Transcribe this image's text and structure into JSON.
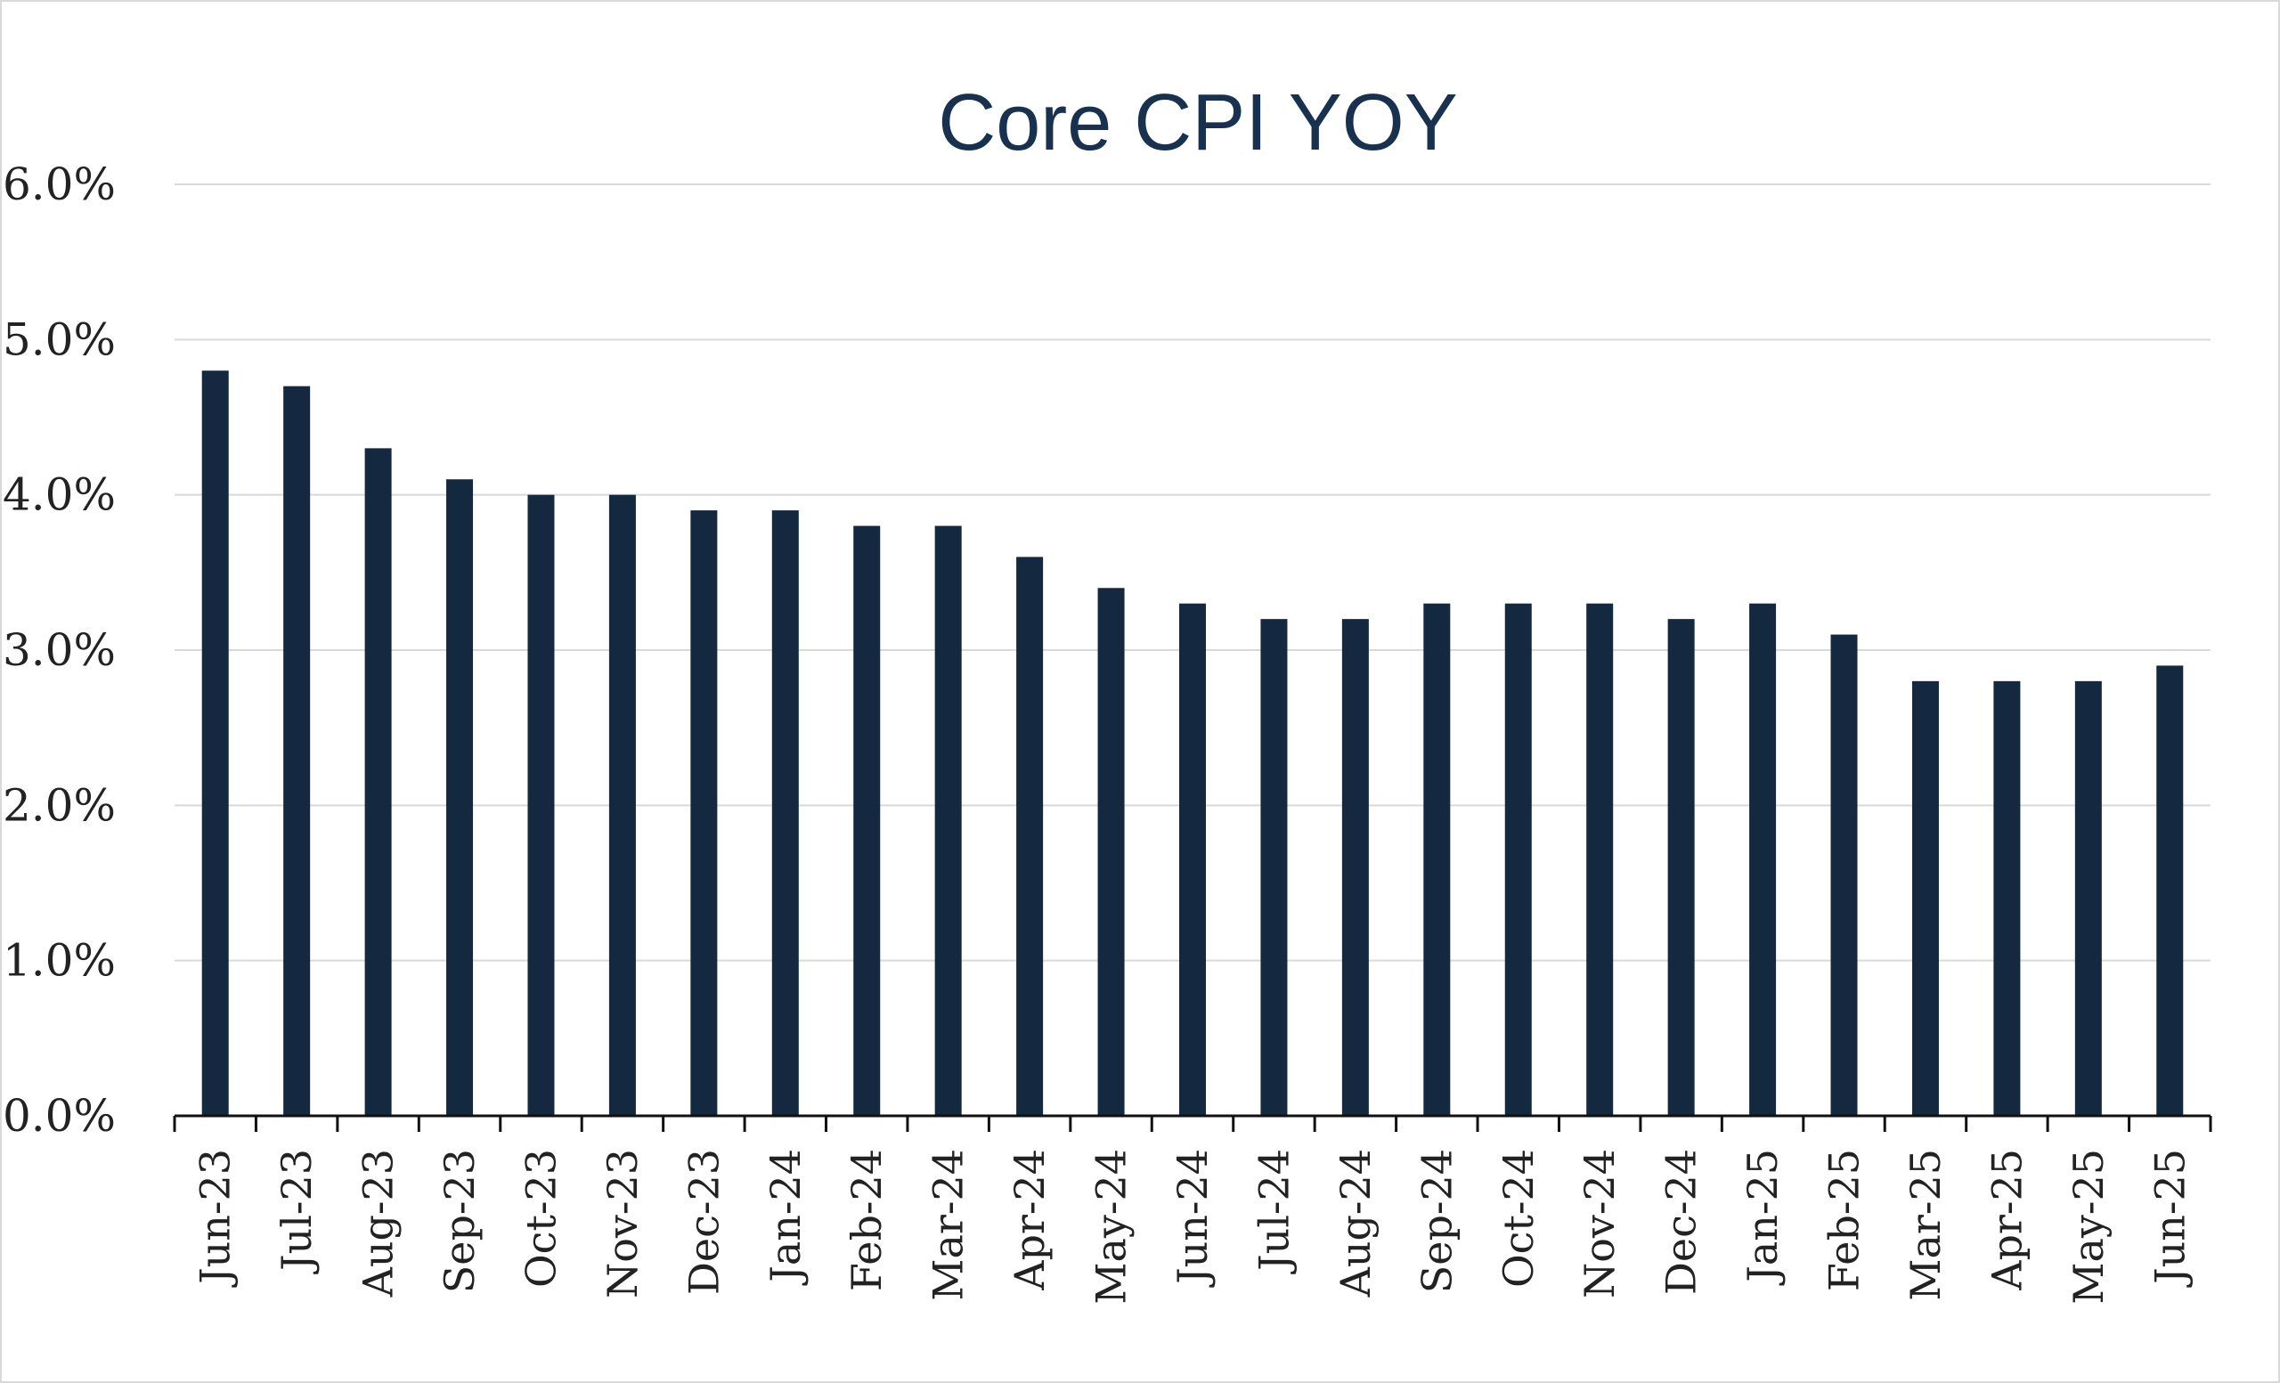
{
  "chart_data": {
    "type": "bar",
    "title": "Core CPI YOY",
    "xlabel": "",
    "ylabel": "",
    "ylim": [
      0,
      6
    ],
    "yticks": [
      "0.0%",
      "1.0%",
      "2.0%",
      "3.0%",
      "4.0%",
      "5.0%",
      "6.0%"
    ],
    "grid": true,
    "bar_color": "#14283f",
    "categories": [
      "Jun-23",
      "Jul-23",
      "Aug-23",
      "Sep-23",
      "Oct-23",
      "Nov-23",
      "Dec-23",
      "Jan-24",
      "Feb-24",
      "Mar-24",
      "Apr-24",
      "May-24",
      "Jun-24",
      "Jul-24",
      "Aug-24",
      "Sep-24",
      "Oct-24",
      "Nov-24",
      "Dec-24",
      "Jan-25",
      "Feb-25",
      "Mar-25",
      "Apr-25",
      "May-25",
      "Jun-25"
    ],
    "values": [
      4.8,
      4.7,
      4.3,
      4.1,
      4.0,
      4.0,
      3.9,
      3.9,
      3.8,
      3.8,
      3.6,
      3.4,
      3.3,
      3.2,
      3.2,
      3.3,
      3.3,
      3.3,
      3.2,
      3.3,
      3.1,
      2.8,
      2.8,
      2.8,
      2.9
    ]
  }
}
